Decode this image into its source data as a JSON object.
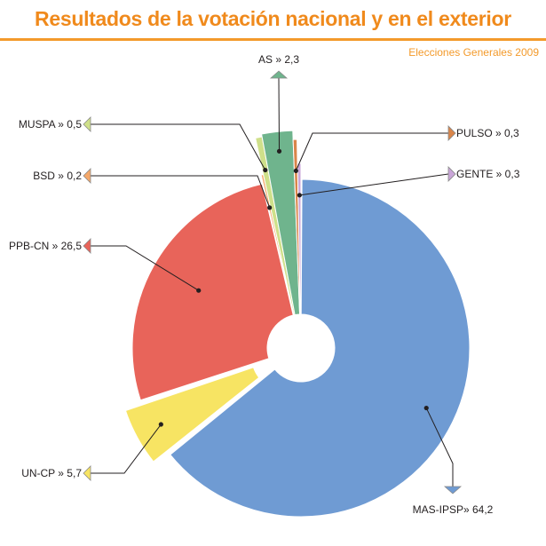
{
  "header": {
    "title": "Resultados de la votación nacional y en el exterior",
    "subtitle": "Elecciones Generales 2009"
  },
  "colors": {
    "accent": "#f08a1c",
    "MAS-IPSP": "#6f9bd3",
    "UN-CP": "#f7e463",
    "PPB-CN": "#e8645a",
    "BSD": "#f5a86a",
    "MUSPA": "#cfe08a",
    "AS": "#6fb48d",
    "PULSO": "#d9854a",
    "GENTE": "#c9a6d8"
  },
  "chart_data": {
    "type": "pie",
    "donut": true,
    "legend": "none",
    "slices": [
      {
        "name": "MAS-IPSP",
        "value": 64.2,
        "label": "MAS-IPSP» 64,2"
      },
      {
        "name": "UN-CP",
        "value": 5.7,
        "label": "UN-CP » 5,7",
        "exploded": true
      },
      {
        "name": "PPB-CN",
        "value": 26.5,
        "label": "PPB-CN » 26,5"
      },
      {
        "name": "BSD",
        "value": 0.2,
        "label": "BSD » 0,2"
      },
      {
        "name": "MUSPA",
        "value": 0.5,
        "label": "MUSPA » 0,5"
      },
      {
        "name": "AS",
        "value": 2.3,
        "label": "AS » 2,3"
      },
      {
        "name": "PULSO",
        "value": 0.3,
        "label": "PULSO » 0,3"
      },
      {
        "name": "GENTE",
        "value": 0.3,
        "label": "GENTE » 0,3"
      }
    ]
  }
}
